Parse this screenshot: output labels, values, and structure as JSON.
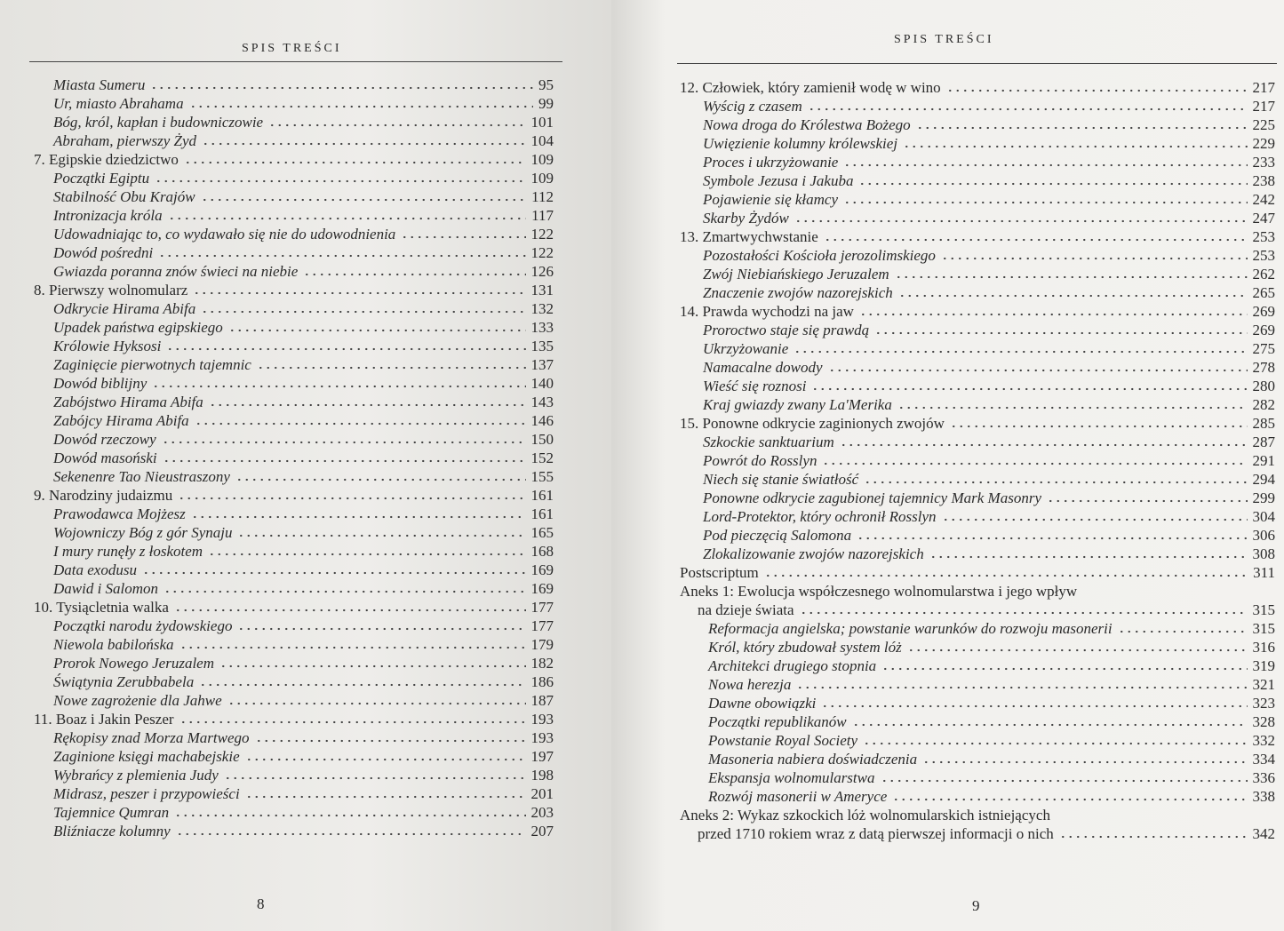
{
  "pages": [
    {
      "header": "SPIS TREŚCI",
      "continued_sections": [
        {
          "title": "Miasta Sumeru",
          "page": "95"
        },
        {
          "title": "Ur, miasto Abrahama",
          "page": "99"
        },
        {
          "title": "Bóg, król, kapłan i budowniczowie",
          "page": "101"
        },
        {
          "title": "Abraham, pierwszy Żyd",
          "page": "104"
        }
      ],
      "chapters": [
        {
          "title": "7. Egipskie dziedzictwo",
          "page": "109",
          "sections": [
            {
              "title": "Początki Egiptu",
              "page": "109"
            },
            {
              "title": "Stabilność Obu Krajów",
              "page": "112"
            },
            {
              "title": "Intronizacja króla",
              "page": "117"
            },
            {
              "title": "Udowadniając to, co wydawało się nie do udowodnienia",
              "page": "122"
            },
            {
              "title": "Dowód pośredni",
              "page": "122"
            },
            {
              "title": "Gwiazda poranna znów świeci na niebie",
              "page": "126"
            }
          ]
        },
        {
          "title": "8. Pierwszy wolnomularz",
          "page": "131",
          "sections": [
            {
              "title": "Odkrycie Hirama Abifa",
              "page": "132"
            },
            {
              "title": "Upadek państwa egipskiego",
              "page": "133"
            },
            {
              "title": "Królowie Hyksosi",
              "page": "135"
            },
            {
              "title": "Zaginięcie pierwotnych tajemnic",
              "page": "137"
            },
            {
              "title": "Dowód biblijny",
              "page": "140"
            },
            {
              "title": "Zabójstwo Hirama Abifa",
              "page": "143"
            },
            {
              "title": "Zabójcy Hirama Abifa",
              "page": "146"
            },
            {
              "title": "Dowód rzeczowy",
              "page": "150"
            },
            {
              "title": "Dowód masoński",
              "page": "152"
            },
            {
              "title": "Sekenenre Tao Nieustraszony",
              "page": "155"
            }
          ]
        },
        {
          "title": "9. Narodziny judaizmu",
          "page": "161",
          "sections": [
            {
              "title": "Prawodawca Mojżesz",
              "page": "161"
            },
            {
              "title": "Wojowniczy Bóg z gór Synaju",
              "page": "165"
            },
            {
              "title": "I mury runęły z łoskotem",
              "page": "168"
            },
            {
              "title": "Data exodusu",
              "page": "169"
            },
            {
              "title": "Dawid i Salomon",
              "page": "169"
            }
          ]
        },
        {
          "title": "10. Tysiącletnia walka",
          "page": "177",
          "sections": [
            {
              "title": "Początki narodu żydowskiego",
              "page": "177"
            },
            {
              "title": "Niewola babilońska",
              "page": "179"
            },
            {
              "title": "Prorok Nowego Jeruzalem",
              "page": "182"
            },
            {
              "title": "Świątynia Zerubbabela",
              "page": "186"
            },
            {
              "title": "Nowe zagrożenie dla Jahwe",
              "page": "187"
            }
          ]
        },
        {
          "title": "11. Boaz i Jakin Peszer",
          "page": "193",
          "sections": [
            {
              "title": "Rękopisy znad Morza Martwego",
              "page": "193"
            },
            {
              "title": "Zaginione księgi machabejskie",
              "page": "197"
            },
            {
              "title": "Wybrańcy z plemienia Judy",
              "page": "198"
            },
            {
              "title": "Midrasz, peszer i przypowieści",
              "page": "201"
            },
            {
              "title": "Tajemnice Qumran",
              "page": "203"
            },
            {
              "title": "Bliźniacze kolumny",
              "page": "207"
            }
          ]
        }
      ],
      "folio": "8"
    },
    {
      "header": "SPIS TREŚCI",
      "continued_sections": [],
      "chapters": [
        {
          "title": "12. Człowiek, który zamienił wodę w wino",
          "page": "217",
          "sections": [
            {
              "title": "Wyścig z czasem",
              "page": "217"
            },
            {
              "title": "Nowa droga do Królestwa Bożego",
              "page": "225"
            },
            {
              "title": "Uwięzienie kolumny królewskiej",
              "page": "229"
            },
            {
              "title": "Proces i ukrzyżowanie",
              "page": "233"
            },
            {
              "title": "Symbole Jezusa i Jakuba",
              "page": "238"
            },
            {
              "title": "Pojawienie się kłamcy",
              "page": "242"
            },
            {
              "title": "Skarby Żydów",
              "page": "247"
            }
          ]
        },
        {
          "title": "13. Zmartwychwstanie",
          "page": "253",
          "sections": [
            {
              "title": "Pozostałości Kościoła jerozolimskiego",
              "page": "253"
            },
            {
              "title": "Zwój Niebiańskiego Jeruzalem",
              "page": "262"
            },
            {
              "title": "Znaczenie zwojów nazorejskich",
              "page": "265"
            }
          ]
        },
        {
          "title": "14. Prawda wychodzi na jaw",
          "page": "269",
          "sections": [
            {
              "title": "Proroctwo staje się prawdą",
              "page": "269"
            },
            {
              "title": "Ukrzyżowanie",
              "page": "275"
            },
            {
              "title": "Namacalne dowody",
              "page": "278"
            },
            {
              "title": "Wieść się roznosi",
              "page": "280"
            },
            {
              "title": "Kraj gwiazdy zwany La'Merika",
              "page": "282"
            }
          ]
        },
        {
          "title": "15. Ponowne odkrycie zaginionych zwojów",
          "page": "285",
          "sections": [
            {
              "title": "Szkockie sanktuarium",
              "page": "287"
            },
            {
              "title": "Powrót do Rosslyn",
              "page": "291"
            },
            {
              "title": "Niech się stanie światłość",
              "page": "294"
            },
            {
              "title": "Ponowne odkrycie zagubionej tajemnicy Mark Masonry",
              "page": "299"
            },
            {
              "title": "Lord-Protektor, który ochronił Rosslyn",
              "page": "304"
            },
            {
              "title": "Pod pieczęcią Salomona",
              "page": "306"
            },
            {
              "title": "Zlokalizowanie zwojów nazorejskich",
              "page": "308"
            }
          ]
        },
        {
          "title": "Postscriptum",
          "page": "311",
          "sections": []
        },
        {
          "title_lines": [
            "Aneks 1: Ewolucja współczesnego wolnomularstwa i jego wpływ",
            "na dzieje świata"
          ],
          "page": "315",
          "sections": [
            {
              "title": "Reformacja angielska; powstanie warunków do rozwoju masonerii",
              "page": "315"
            },
            {
              "title": "Król, który zbudował system lóż",
              "page": "316"
            },
            {
              "title": "Architekci drugiego stopnia",
              "page": "319"
            },
            {
              "title": "Nowa herezja",
              "page": "321"
            },
            {
              "title": "Dawne obowiązki",
              "page": "323"
            },
            {
              "title": "Początki republikanów",
              "page": "328"
            },
            {
              "title": "Powstanie Royal Society",
              "page": "332"
            },
            {
              "title": "Masoneria nabiera doświadczenia",
              "page": "334"
            },
            {
              "title": "Ekspansja wolnomularstwa",
              "page": "336"
            },
            {
              "title": "Rozwój masonerii w Ameryce",
              "page": "338"
            }
          ]
        },
        {
          "title_lines": [
            "Aneks 2: Wykaz szkockich lóż wolnomularskich istniejących",
            "przed 1710 rokiem wraz z datą pierwszej informacji o nich"
          ],
          "page": "342",
          "sections": []
        }
      ],
      "folio": "9"
    }
  ]
}
